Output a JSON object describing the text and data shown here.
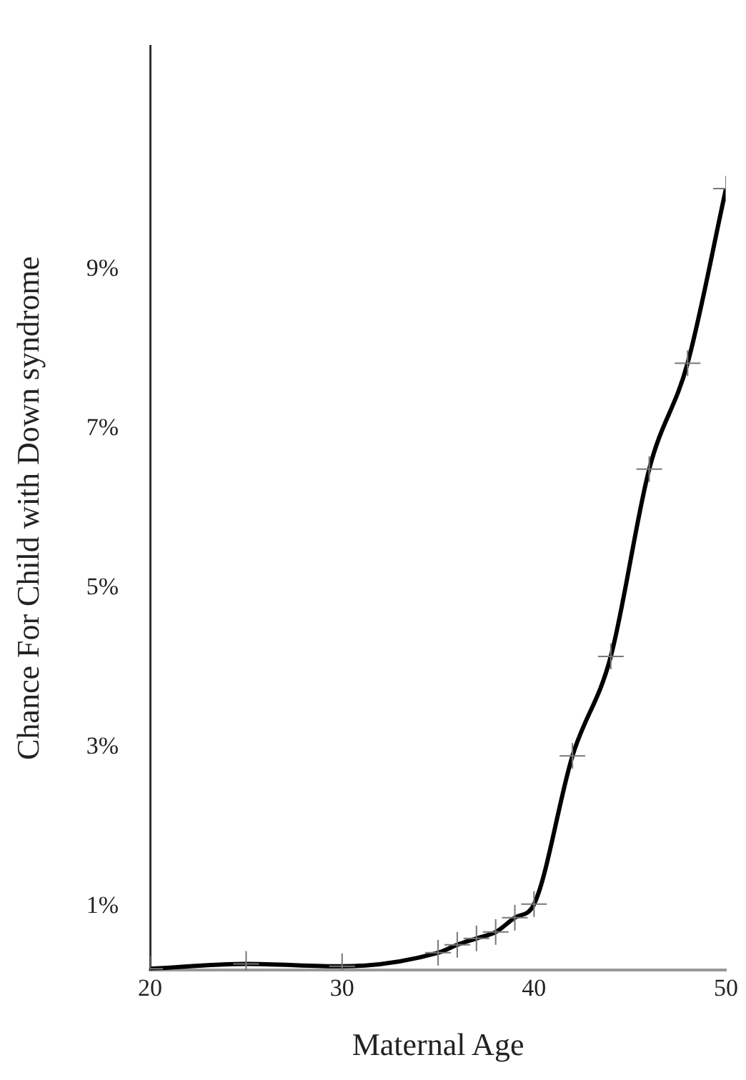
{
  "chart_data": {
    "type": "line",
    "xlabel": "Maternal Age",
    "ylabel": "Chance For Child with Down syndrome",
    "x": [
      20,
      25,
      30,
      35,
      36,
      37,
      38,
      39,
      40,
      42,
      44,
      46,
      48,
      50
    ],
    "series": [
      {
        "color": "#000000",
        "values": [
          0.22,
          0.28,
          0.25,
          0.42,
          0.52,
          0.6,
          0.68,
          0.86,
          1.03,
          2.89,
          4.14,
          6.49,
          7.82,
          10.01
        ]
      }
    ],
    "xlim": [
      20,
      50
    ],
    "xticks": [
      20,
      30,
      40,
      50
    ],
    "ylim": [
      0.2,
      11.8
    ],
    "yticks": [
      {
        "value": 1,
        "label": "1%"
      },
      {
        "value": 3,
        "label": "3%"
      },
      {
        "value": 5,
        "label": "5%"
      },
      {
        "value": 7,
        "label": "7%"
      },
      {
        "value": 9,
        "label": "9%"
      }
    ],
    "grid": false,
    "legend": false,
    "marker": "cross",
    "line_style": "solid"
  }
}
